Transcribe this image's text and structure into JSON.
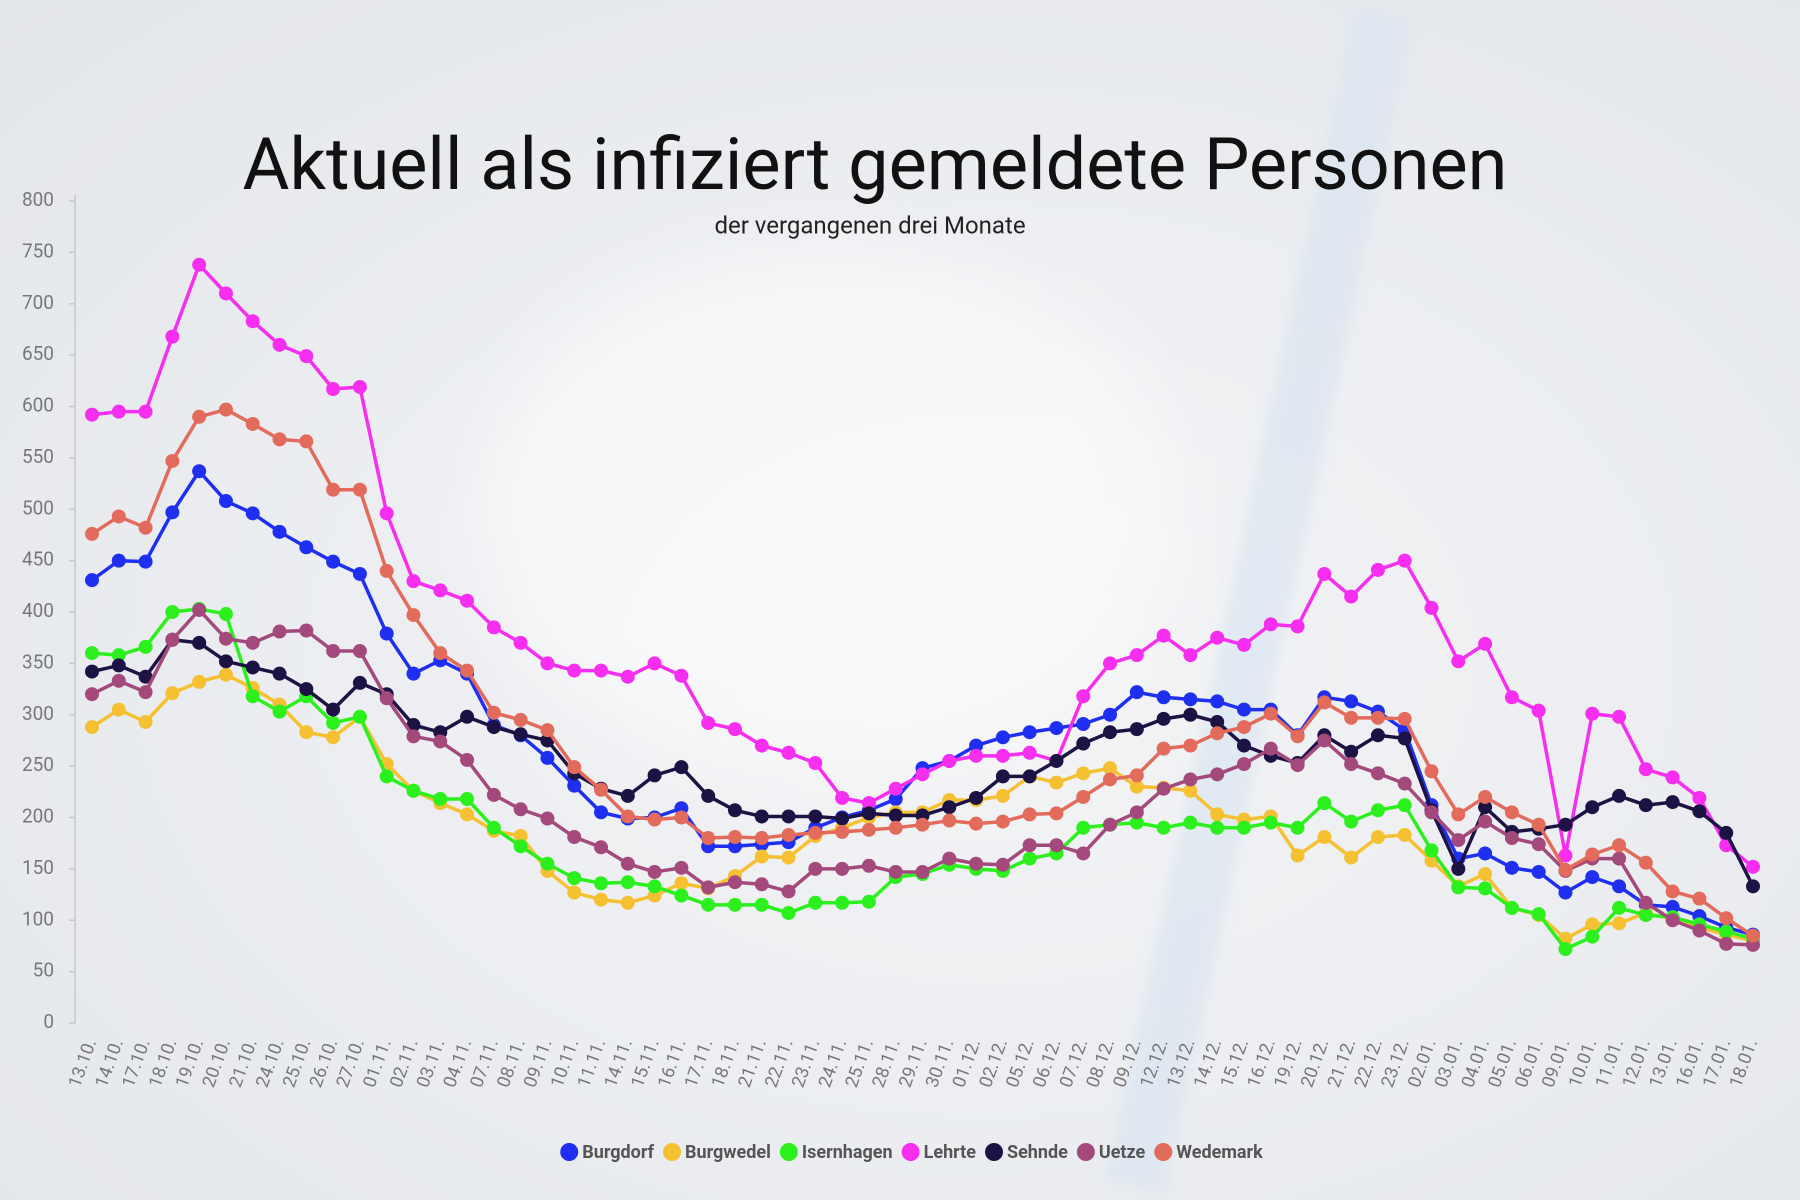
{
  "chart_data": {
    "type": "line",
    "title": "Aktuell als infiziert gemeldete Personen",
    "subtitle": "der vergangenen drei Monate",
    "categories": [
      "13.10.",
      "14.10.",
      "17.10.",
      "18.10.",
      "19.10.",
      "20.10.",
      "21.10.",
      "24.10.",
      "25.10.",
      "26.10.",
      "27.10.",
      "01.11.",
      "02.11.",
      "03.11.",
      "04.11.",
      "07.11.",
      "08.11.",
      "09.11.",
      "10.11.",
      "11.11.",
      "14.11.",
      "15.11.",
      "16.11.",
      "17.11.",
      "18.11.",
      "21.11.",
      "22.11.",
      "23.11.",
      "24.11.",
      "25.11.",
      "28.11.",
      "29.11.",
      "30.11.",
      "01.12.",
      "02.12.",
      "05.12.",
      "06.12.",
      "07.12.",
      "08.12.",
      "09.12.",
      "12.12.",
      "13.12.",
      "14.12.",
      "15.12.",
      "16.12.",
      "19.12.",
      "20.12.",
      "21.12.",
      "22.12.",
      "23.12.",
      "02.01.",
      "03.01.",
      "04.01.",
      "05.01.",
      "06.01.",
      "09.01.",
      "10.01.",
      "11.01.",
      "12.01.",
      "13.01.",
      "16.01.",
      "17.01.",
      "18.01."
    ],
    "series": [
      {
        "name": "Burgdorf",
        "color": "#1f2ff0",
        "values": [
          431,
          450,
          449,
          497,
          537,
          508,
          496,
          478,
          463,
          449,
          437,
          379,
          340,
          353,
          340,
          290,
          280,
          258,
          231,
          205,
          199,
          200,
          209,
          172,
          172,
          174,
          176,
          190,
          200,
          207,
          218,
          248,
          255,
          270,
          278,
          283,
          287,
          291,
          300,
          322,
          317,
          315,
          313,
          305,
          305,
          280,
          317,
          313,
          303,
          285,
          212,
          160,
          165,
          151,
          147,
          127,
          142,
          133,
          115,
          113,
          104,
          93,
          86
        ]
      },
      {
        "name": "Burgwedel",
        "color": "#f5c132",
        "values": [
          288,
          305,
          293,
          321,
          332,
          339,
          326,
          310,
          283,
          278,
          298,
          252,
          226,
          214,
          203,
          187,
          182,
          148,
          127,
          120,
          117,
          124,
          136,
          131,
          143,
          162,
          161,
          182,
          190,
          200,
          205,
          205,
          217,
          217,
          221,
          240,
          234,
          243,
          248,
          230,
          229,
          226,
          203,
          198,
          201,
          163,
          181,
          161,
          181,
          183,
          158,
          133,
          145,
          112,
          105,
          82,
          96,
          97,
          107,
          101,
          93,
          86,
          80
        ]
      },
      {
        "name": "Isernhagen",
        "color": "#2cf01e",
        "values": [
          360,
          358,
          366,
          400,
          403,
          398,
          318,
          303,
          318,
          292,
          298,
          240,
          226,
          218,
          218,
          190,
          172,
          155,
          141,
          136,
          137,
          133,
          124,
          115,
          115,
          115,
          107,
          117,
          117,
          118,
          142,
          145,
          154,
          150,
          148,
          160,
          165,
          190,
          193,
          195,
          190,
          195,
          190,
          190,
          195,
          190,
          214,
          196,
          207,
          212,
          168,
          132,
          131,
          112,
          106,
          72,
          84,
          112,
          105,
          103,
          96,
          89,
          82
        ]
      },
      {
        "name": "Lehrte",
        "color": "#f52ef0",
        "values": [
          592,
          595,
          595,
          668,
          738,
          710,
          683,
          660,
          649,
          617,
          619,
          496,
          430,
          421,
          411,
          385,
          370,
          350,
          343,
          343,
          337,
          350,
          338,
          292,
          286,
          270,
          263,
          253,
          219,
          214,
          228,
          242,
          255,
          260,
          260,
          263,
          255,
          318,
          350,
          358,
          377,
          358,
          375,
          368,
          388,
          386,
          437,
          415,
          441,
          450,
          404,
          352,
          369,
          317,
          304,
          163,
          301,
          298,
          247,
          239,
          219,
          173,
          152
        ]
      },
      {
        "name": "Sehnde",
        "color": "#1c1244",
        "values": [
          342,
          348,
          337,
          373,
          370,
          352,
          346,
          340,
          325,
          305,
          331,
          320,
          290,
          283,
          298,
          288,
          281,
          275,
          243,
          228,
          221,
          241,
          249,
          221,
          207,
          201,
          201,
          201,
          199,
          204,
          202,
          202,
          210,
          219,
          240,
          240,
          255,
          272,
          283,
          286,
          296,
          300,
          293,
          270,
          260,
          253,
          280,
          264,
          280,
          277,
          207,
          150,
          210,
          186,
          189,
          193,
          210,
          221,
          212,
          215,
          206,
          185,
          133
        ]
      },
      {
        "name": "Uetze",
        "color": "#a3497c",
        "values": [
          320,
          333,
          322,
          373,
          402,
          374,
          370,
          381,
          382,
          362,
          362,
          316,
          279,
          274,
          256,
          222,
          208,
          199,
          181,
          171,
          155,
          147,
          151,
          132,
          137,
          135,
          128,
          150,
          150,
          153,
          147,
          147,
          160,
          155,
          154,
          173,
          173,
          165,
          193,
          205,
          228,
          237,
          242,
          252,
          267,
          251,
          275,
          252,
          243,
          233,
          205,
          178,
          196,
          180,
          174,
          148,
          160,
          160,
          117,
          100,
          90,
          77,
          76
        ]
      },
      {
        "name": "Wedemark",
        "color": "#e26b5c",
        "values": [
          476,
          493,
          482,
          547,
          590,
          597,
          583,
          568,
          566,
          519,
          519,
          440,
          397,
          360,
          343,
          302,
          295,
          285,
          249,
          227,
          201,
          198,
          200,
          180,
          181,
          180,
          183,
          185,
          186,
          188,
          190,
          193,
          197,
          194,
          196,
          203,
          204,
          220,
          237,
          241,
          267,
          270,
          282,
          288,
          301,
          279,
          312,
          297,
          297,
          296,
          245,
          203,
          220,
          205,
          193,
          149,
          164,
          173,
          156,
          128,
          121,
          102,
          85
        ]
      }
    ],
    "ylim": [
      0,
      800
    ],
    "yticks": [
      0,
      50,
      100,
      150,
      200,
      250,
      300,
      350,
      400,
      450,
      500,
      550,
      600,
      650,
      700,
      750,
      800
    ],
    "grid": false,
    "legend": "bottom"
  }
}
